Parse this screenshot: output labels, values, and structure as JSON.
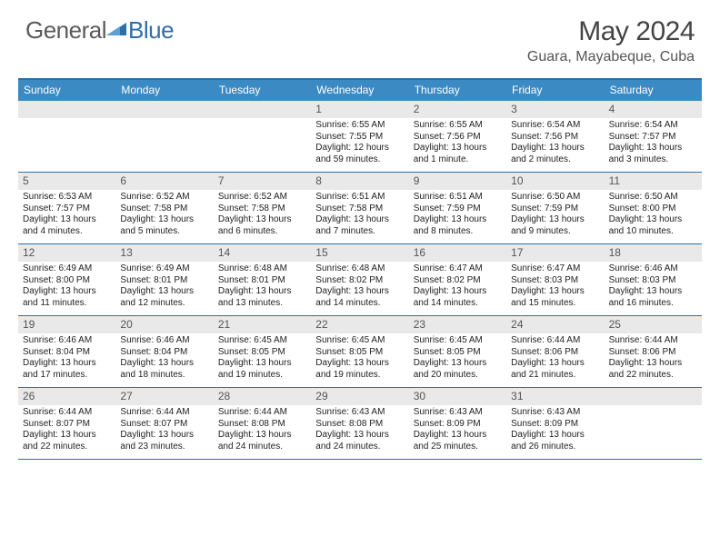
{
  "logo": {
    "word1": "General",
    "word2": "Blue"
  },
  "title": "May 2024",
  "location": "Guara, Mayabeque, Cuba",
  "colors": {
    "header_bar": "#3b8ac4",
    "rule": "#2f6fa8",
    "daynum_bg": "#e9e9e9",
    "logo_gray": "#5a5a5a",
    "logo_blue": "#2f6fa8"
  },
  "weekdays": [
    "Sunday",
    "Monday",
    "Tuesday",
    "Wednesday",
    "Thursday",
    "Friday",
    "Saturday"
  ],
  "weeks": [
    [
      {
        "n": "",
        "sr": "",
        "ss": "",
        "dl": ""
      },
      {
        "n": "",
        "sr": "",
        "ss": "",
        "dl": ""
      },
      {
        "n": "",
        "sr": "",
        "ss": "",
        "dl": ""
      },
      {
        "n": "1",
        "sr": "6:55 AM",
        "ss": "7:55 PM",
        "dl": "12 hours and 59 minutes."
      },
      {
        "n": "2",
        "sr": "6:55 AM",
        "ss": "7:56 PM",
        "dl": "13 hours and 1 minute."
      },
      {
        "n": "3",
        "sr": "6:54 AM",
        "ss": "7:56 PM",
        "dl": "13 hours and 2 minutes."
      },
      {
        "n": "4",
        "sr": "6:54 AM",
        "ss": "7:57 PM",
        "dl": "13 hours and 3 minutes."
      }
    ],
    [
      {
        "n": "5",
        "sr": "6:53 AM",
        "ss": "7:57 PM",
        "dl": "13 hours and 4 minutes."
      },
      {
        "n": "6",
        "sr": "6:52 AM",
        "ss": "7:58 PM",
        "dl": "13 hours and 5 minutes."
      },
      {
        "n": "7",
        "sr": "6:52 AM",
        "ss": "7:58 PM",
        "dl": "13 hours and 6 minutes."
      },
      {
        "n": "8",
        "sr": "6:51 AM",
        "ss": "7:58 PM",
        "dl": "13 hours and 7 minutes."
      },
      {
        "n": "9",
        "sr": "6:51 AM",
        "ss": "7:59 PM",
        "dl": "13 hours and 8 minutes."
      },
      {
        "n": "10",
        "sr": "6:50 AM",
        "ss": "7:59 PM",
        "dl": "13 hours and 9 minutes."
      },
      {
        "n": "11",
        "sr": "6:50 AM",
        "ss": "8:00 PM",
        "dl": "13 hours and 10 minutes."
      }
    ],
    [
      {
        "n": "12",
        "sr": "6:49 AM",
        "ss": "8:00 PM",
        "dl": "13 hours and 11 minutes."
      },
      {
        "n": "13",
        "sr": "6:49 AM",
        "ss": "8:01 PM",
        "dl": "13 hours and 12 minutes."
      },
      {
        "n": "14",
        "sr": "6:48 AM",
        "ss": "8:01 PM",
        "dl": "13 hours and 13 minutes."
      },
      {
        "n": "15",
        "sr": "6:48 AM",
        "ss": "8:02 PM",
        "dl": "13 hours and 14 minutes."
      },
      {
        "n": "16",
        "sr": "6:47 AM",
        "ss": "8:02 PM",
        "dl": "13 hours and 14 minutes."
      },
      {
        "n": "17",
        "sr": "6:47 AM",
        "ss": "8:03 PM",
        "dl": "13 hours and 15 minutes."
      },
      {
        "n": "18",
        "sr": "6:46 AM",
        "ss": "8:03 PM",
        "dl": "13 hours and 16 minutes."
      }
    ],
    [
      {
        "n": "19",
        "sr": "6:46 AM",
        "ss": "8:04 PM",
        "dl": "13 hours and 17 minutes."
      },
      {
        "n": "20",
        "sr": "6:46 AM",
        "ss": "8:04 PM",
        "dl": "13 hours and 18 minutes."
      },
      {
        "n": "21",
        "sr": "6:45 AM",
        "ss": "8:05 PM",
        "dl": "13 hours and 19 minutes."
      },
      {
        "n": "22",
        "sr": "6:45 AM",
        "ss": "8:05 PM",
        "dl": "13 hours and 19 minutes."
      },
      {
        "n": "23",
        "sr": "6:45 AM",
        "ss": "8:05 PM",
        "dl": "13 hours and 20 minutes."
      },
      {
        "n": "24",
        "sr": "6:44 AM",
        "ss": "8:06 PM",
        "dl": "13 hours and 21 minutes."
      },
      {
        "n": "25",
        "sr": "6:44 AM",
        "ss": "8:06 PM",
        "dl": "13 hours and 22 minutes."
      }
    ],
    [
      {
        "n": "26",
        "sr": "6:44 AM",
        "ss": "8:07 PM",
        "dl": "13 hours and 22 minutes."
      },
      {
        "n": "27",
        "sr": "6:44 AM",
        "ss": "8:07 PM",
        "dl": "13 hours and 23 minutes."
      },
      {
        "n": "28",
        "sr": "6:44 AM",
        "ss": "8:08 PM",
        "dl": "13 hours and 24 minutes."
      },
      {
        "n": "29",
        "sr": "6:43 AM",
        "ss": "8:08 PM",
        "dl": "13 hours and 24 minutes."
      },
      {
        "n": "30",
        "sr": "6:43 AM",
        "ss": "8:09 PM",
        "dl": "13 hours and 25 minutes."
      },
      {
        "n": "31",
        "sr": "6:43 AM",
        "ss": "8:09 PM",
        "dl": "13 hours and 26 minutes."
      },
      {
        "n": "",
        "sr": "",
        "ss": "",
        "dl": ""
      }
    ]
  ],
  "labels": {
    "sunrise": "Sunrise: ",
    "sunset": "Sunset: ",
    "daylight": "Daylight: "
  }
}
